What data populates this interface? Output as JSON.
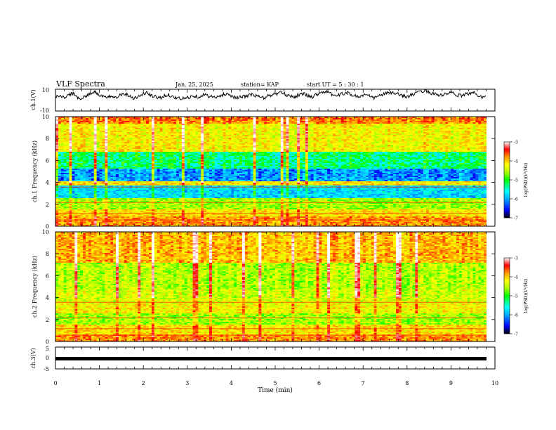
{
  "header": {
    "title": "VLF Spectra",
    "date": "Jan. 25, 2025",
    "station": "station= KAP",
    "start": "start  UT =   5 : 30 : 1"
  },
  "colorbar": {
    "label": "log(PSD)(V²/Hz)",
    "ticks": [
      "-3",
      "-4",
      "-5",
      "-6",
      "-7"
    ],
    "colors": [
      "#000000",
      "#0000ff",
      "#00aaff",
      "#00ffff",
      "#00ff00",
      "#aaff00",
      "#ffff00",
      "#ff9900",
      "#ff0000",
      "#ff9999",
      "#ffffff"
    ]
  },
  "chart_data": [
    {
      "type": "line",
      "name": "ch1-waveform",
      "ylabel": "ch.1(V)",
      "ylim": [
        -10,
        10
      ],
      "yticks": [
        "10",
        "-10"
      ],
      "xlim": [
        0,
        10
      ],
      "samples": [
        3,
        4,
        2,
        5,
        6,
        3,
        1,
        4,
        6,
        8,
        5,
        3,
        2,
        4,
        3,
        5,
        6,
        4,
        2,
        3,
        5,
        7,
        4,
        3,
        2,
        4,
        5,
        3,
        2,
        1,
        2,
        3,
        4,
        3,
        5,
        4,
        3,
        2,
        4,
        6,
        5,
        3,
        2,
        3,
        4,
        5,
        4,
        3,
        2,
        4,
        5,
        6,
        7,
        5,
        4,
        3,
        5,
        6,
        4,
        3,
        5,
        7,
        8,
        6,
        5,
        4,
        6,
        7,
        5,
        4,
        3,
        5,
        4,
        2,
        3,
        5,
        6,
        7,
        6,
        5,
        4,
        3,
        5,
        6,
        8,
        9,
        7,
        6,
        5,
        4,
        6,
        7,
        5,
        4,
        5,
        6,
        7,
        5,
        3,
        4
      ]
    },
    {
      "type": "heatmap",
      "name": "ch1-spectrogram",
      "ylabel": "ch.1  Frequency (kHz)",
      "ylim": [
        0,
        10
      ],
      "yticks": [
        "10",
        "8",
        "6",
        "4",
        "2",
        "0"
      ],
      "xlim": [
        0,
        10
      ]
    },
    {
      "type": "heatmap",
      "name": "ch2-spectrogram",
      "ylabel": "ch.2  Frequency (kHz)",
      "ylim": [
        0,
        10
      ],
      "yticks": [
        "10",
        "8",
        "6",
        "4",
        "2",
        "0"
      ],
      "xlim": [
        0,
        10
      ]
    },
    {
      "type": "line",
      "name": "ch3-signal",
      "ylabel": "ch.3(V)",
      "ylim": [
        -5,
        5
      ],
      "yticks": [
        "5",
        "0",
        "-5"
      ],
      "xlim": [
        0,
        10
      ],
      "value": 0,
      "xlabel": "Time (min)",
      "xticks": [
        "0",
        "1",
        "2",
        "3",
        "4",
        "5",
        "6",
        "7",
        "8",
        "9",
        "10"
      ]
    }
  ]
}
